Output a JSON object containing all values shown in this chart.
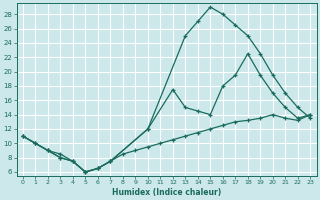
{
  "xlabel": "Humidex (Indice chaleur)",
  "bg_color": "#cce8ea",
  "line_color": "#1a6b5e",
  "grid_color": "#ffffff",
  "xlim": [
    -0.5,
    23.5
  ],
  "ylim": [
    5.5,
    29.5
  ],
  "xticks": [
    0,
    1,
    2,
    3,
    4,
    5,
    6,
    7,
    8,
    9,
    10,
    11,
    12,
    13,
    14,
    15,
    16,
    17,
    18,
    19,
    20,
    21,
    22,
    23
  ],
  "yticks": [
    6,
    8,
    10,
    12,
    14,
    16,
    18,
    20,
    22,
    24,
    26,
    28
  ],
  "line1_x": [
    0,
    1,
    2,
    3,
    4,
    5,
    6,
    7,
    10,
    13,
    14,
    15,
    16,
    17,
    18,
    19,
    20,
    21,
    22,
    23
  ],
  "line1_y": [
    11,
    10,
    9,
    8,
    7.5,
    6,
    6.5,
    7.5,
    12,
    25,
    27,
    29,
    28,
    26.5,
    25,
    22.5,
    19.5,
    17,
    15,
    13.5
  ],
  "line2_x": [
    0,
    1,
    2,
    3,
    4,
    5,
    6,
    7,
    10,
    12,
    13,
    14,
    15,
    16,
    17,
    18,
    19,
    20,
    21,
    22,
    23
  ],
  "line2_y": [
    11,
    10,
    9,
    8,
    7.5,
    6,
    6.5,
    7.5,
    12,
    17.5,
    15,
    14.5,
    14,
    18,
    19.5,
    22.5,
    19.5,
    17,
    15,
    13.5,
    14
  ],
  "line3_x": [
    0,
    1,
    2,
    3,
    4,
    5,
    6,
    7,
    8,
    9,
    10,
    11,
    12,
    13,
    14,
    15,
    16,
    17,
    18,
    19,
    20,
    21,
    22,
    23
  ],
  "line3_y": [
    11,
    10,
    9,
    8.5,
    7.5,
    6,
    6.5,
    7.5,
    8.5,
    9,
    9.5,
    10,
    10.5,
    11,
    11.5,
    12,
    12.5,
    13,
    13.2,
    13.5,
    14,
    13.5,
    13.2,
    14
  ]
}
